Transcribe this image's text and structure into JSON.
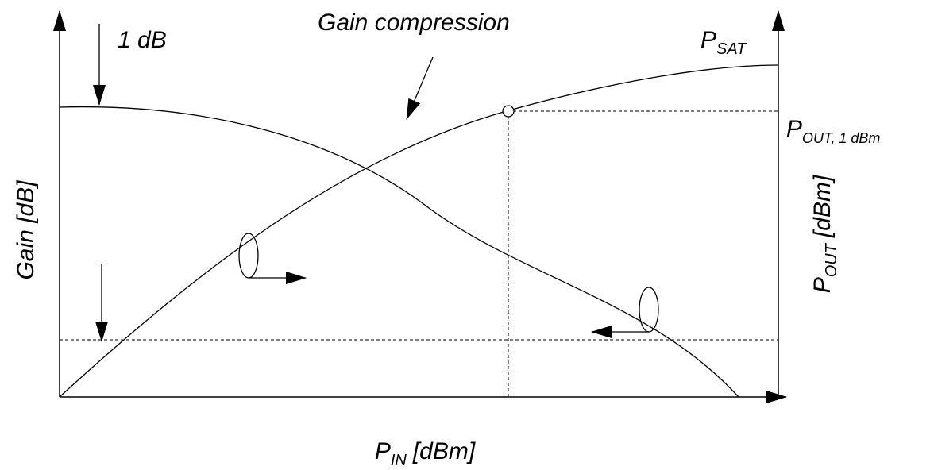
{
  "annotations": {
    "one_db": "1 dB",
    "gain_compression": "Gain compression",
    "p_sat": {
      "main": "P",
      "sub": "SAT"
    },
    "p_out_1db": {
      "main": "P",
      "sub": "OUT, 1 dBm"
    }
  },
  "axes": {
    "x_label": {
      "main": "P",
      "sub": "IN",
      "unit": "[dBm]"
    },
    "y_left_label": "Gain [dB]",
    "y_right_label": {
      "main": "P",
      "sub": "OUT",
      "unit": "[dBm]"
    }
  }
}
